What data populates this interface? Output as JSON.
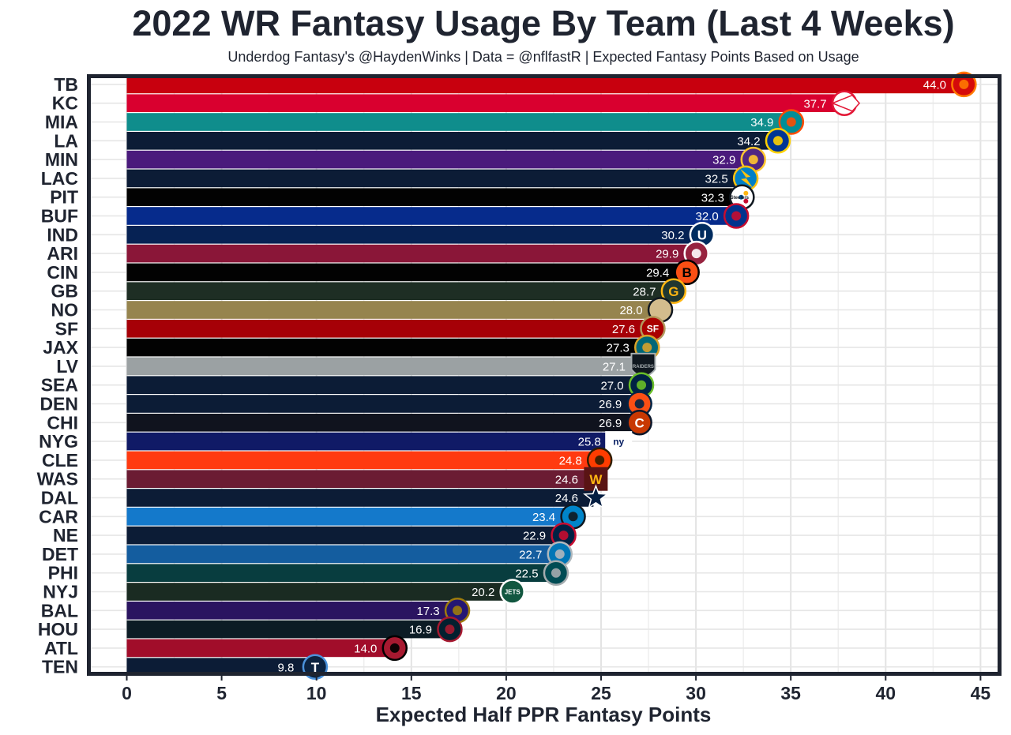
{
  "chart_data": {
    "type": "bar",
    "orientation": "horizontal",
    "title": "2022 WR Fantasy Usage By Team (Last 4 Weeks)",
    "subtitle": "Underdog Fantasy's @HaydenWinks | Data = @nflfastR | Expected Fantasy Points Based on Usage",
    "xlabel": "Expected Half PPR Fantasy Points",
    "ylabel": "",
    "xlim": [
      0,
      45
    ],
    "xticks": [
      "0",
      "5",
      "10",
      "15",
      "20",
      "25",
      "30",
      "35",
      "40",
      "45"
    ],
    "grid": true,
    "legend": "none",
    "categories": [
      "TB",
      "KC",
      "MIA",
      "LA",
      "MIN",
      "LAC",
      "PIT",
      "BUF",
      "IND",
      "ARI",
      "CIN",
      "GB",
      "NO",
      "SF",
      "JAX",
      "LV",
      "SEA",
      "DEN",
      "CHI",
      "NYG",
      "CLE",
      "WAS",
      "DAL",
      "CAR",
      "NE",
      "DET",
      "PHI",
      "NYJ",
      "BAL",
      "HOU",
      "ATL",
      "TEN"
    ],
    "values": [
      44.0,
      37.7,
      34.9,
      34.2,
      32.9,
      32.5,
      32.3,
      32.0,
      30.2,
      29.9,
      29.4,
      28.7,
      28.0,
      27.6,
      27.3,
      27.1,
      27.0,
      26.9,
      26.9,
      25.8,
      24.8,
      24.6,
      24.6,
      23.4,
      22.9,
      22.7,
      22.5,
      20.2,
      17.3,
      16.9,
      14.0,
      9.8
    ],
    "value_labels": [
      "44.0",
      "37.7",
      "34.9",
      "34.2",
      "32.9",
      "32.5",
      "32.3",
      "32.0",
      "30.2",
      "29.9",
      "29.4",
      "28.7",
      "28.0",
      "27.6",
      "27.3",
      "27.1",
      "27.0",
      "26.9",
      "26.9",
      "25.8",
      "24.8",
      "24.6",
      "24.6",
      "23.4",
      "22.9",
      "22.7",
      "22.5",
      "20.2",
      "17.3",
      "16.9",
      "14.0",
      "9.8"
    ],
    "colors": [
      "#D50A0A",
      "#E31837",
      "#008E97",
      "#003594",
      "#4F2683",
      "#0080C6",
      "#101820",
      "#00338D",
      "#002C5F",
      "#97233F",
      "#FB4F14",
      "#203731",
      "#D3BC8D",
      "#AA0000",
      "#101820",
      "#A5ACAF",
      "#002244",
      "#FB4F14",
      "#0B162A",
      "#0B2265",
      "#FF3C00",
      "#5A1414",
      "#041E42",
      "#0085CA",
      "#002244",
      "#0076B6",
      "#004C54",
      "#125740",
      "#241773",
      "#03202F",
      "#A71930",
      "#0C2340"
    ],
    "bar_colors_as_drawn": [
      "#C8000E",
      "#D9002F",
      "#0F8D8C",
      "#0C1C36",
      "#4A1A7C",
      "#0C1C36",
      "#020202",
      "#062B8C",
      "#062254",
      "#8A1638",
      "#020202",
      "#1E2E24",
      "#96844E",
      "#A60007",
      "#020202",
      "#9BA1A3",
      "#0C1C36",
      "#0C1C36",
      "#10131E",
      "#101A66",
      "#FF3A10",
      "#6B1C33",
      "#0C1C36",
      "#1479CB",
      "#0C1C36",
      "#145D9F",
      "#083D3F",
      "#1A2B22",
      "#2A1460",
      "#0C1C25",
      "#A10D2A",
      "#0C1C36"
    ],
    "logo_icons": [
      "buccaneers-flag-icon",
      "chiefs-arrowhead-icon",
      "dolphins-icon",
      "rams-horn-icon",
      "vikings-head-icon",
      "chargers-bolt-icon",
      "steelers-hypocycloids-icon",
      "bills-charging-buffalo-icon",
      "colts-horseshoe-icon",
      "cardinals-head-icon",
      "bengals-b-icon",
      "packers-g-icon",
      "saints-fleur-de-lis-icon",
      "49ers-oval-icon",
      "jaguars-head-icon",
      "raiders-shield-icon",
      "seahawks-head-icon",
      "broncos-head-icon",
      "bears-c-icon",
      "giants-ny-icon",
      "browns-elf-icon",
      "commanders-w-icon",
      "cowboys-star-icon",
      "panthers-head-icon",
      "patriots-flying-elvis-icon",
      "lions-icon",
      "eagles-head-icon",
      "jets-oval-icon",
      "ravens-head-icon",
      "texans-bull-icon",
      "falcons-icon",
      "titans-t-icon"
    ],
    "logo_texts": {
      "GB": "G",
      "CIN": "B",
      "NYG": "ny",
      "WAS": "W",
      "NYJ": "JETS",
      "TEN": "T",
      "SF": "SF",
      "IND": "U",
      "CHI": "C",
      "LV": "RAIDERS",
      "PIT": "Steelers"
    }
  }
}
